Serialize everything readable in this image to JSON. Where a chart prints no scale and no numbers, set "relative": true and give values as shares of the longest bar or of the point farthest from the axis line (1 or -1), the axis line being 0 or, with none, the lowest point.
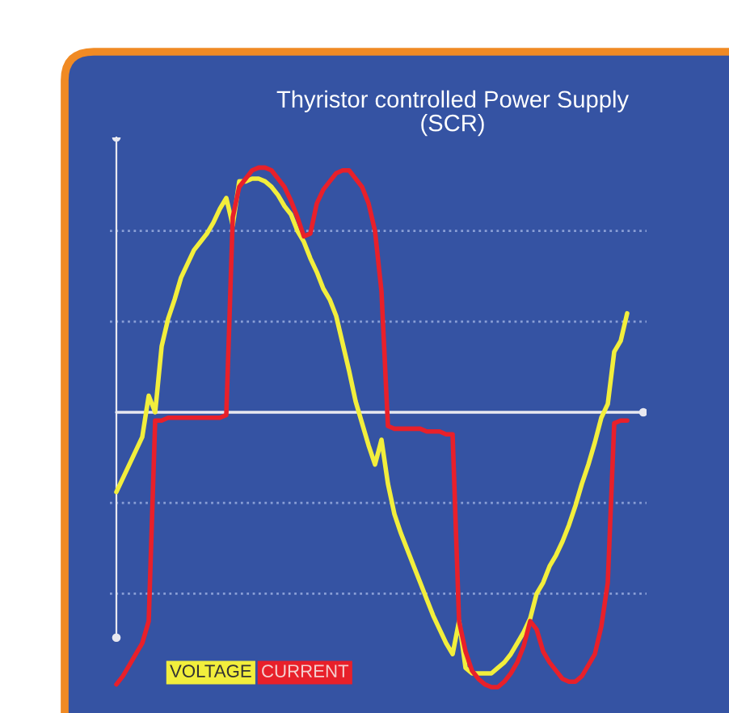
{
  "chart_data": {
    "type": "line",
    "title": "Thyristor controlled Power Supply\n(SCR)",
    "relative": true,
    "legend": "bottom left",
    "categories": [
      null,
      null,
      null,
      null,
      null,
      null,
      null,
      null,
      null,
      null,
      null,
      null,
      null,
      null,
      null,
      null,
      null,
      null,
      null,
      null,
      null,
      null,
      null,
      null,
      null,
      null,
      null,
      null,
      null,
      null,
      null,
      null,
      null,
      null,
      null,
      null,
      null,
      null,
      null,
      null,
      null,
      null,
      null,
      null,
      null,
      null,
      null,
      null,
      null,
      null,
      null,
      null,
      null,
      null,
      null,
      null,
      null,
      null,
      null,
      null,
      null,
      null,
      null,
      null,
      null,
      null,
      null,
      null,
      null,
      null,
      null,
      null,
      null,
      null,
      null,
      null,
      null,
      null,
      null,
      null
    ],
    "series": [
      {
        "name": "VOLTAGE",
        "color": "#f2ee3c",
        "values": [
          -0.29,
          -0.24,
          -0.19,
          -0.14,
          -0.09,
          0.06,
          0,
          0.24,
          0.34,
          0.41,
          0.49,
          0.54,
          0.59,
          0.62,
          0.65,
          0.69,
          0.74,
          0.78,
          0.68,
          0.84,
          0.84,
          0.85,
          0.85,
          0.84,
          0.82,
          0.79,
          0.75,
          0.72,
          0.66,
          0.62,
          0.56,
          0.51,
          0.45,
          0.41,
          0.35,
          0.25,
          0.15,
          0.04,
          -0.04,
          -0.12,
          -0.19,
          -0.1,
          -0.26,
          -0.37,
          -0.44,
          -0.5,
          -0.56,
          -0.62,
          -0.68,
          -0.74,
          -0.79,
          -0.84,
          -0.88,
          -0.76,
          -0.93,
          -0.95,
          -0.95,
          -0.95,
          -0.95,
          -0.93,
          -0.91,
          -0.88,
          -0.84,
          -0.8,
          -0.75,
          -0.66,
          -0.62,
          -0.56,
          -0.52,
          -0.47,
          -0.41,
          -0.34,
          -0.26,
          -0.19,
          -0.11,
          -0.02,
          0.03,
          0.22,
          0.26,
          0.36
        ]
      },
      {
        "name": "CURRENT",
        "color": "#e8202a",
        "values": [
          -0.99,
          -0.96,
          -0.92,
          -0.88,
          -0.84,
          -0.76,
          -0.03,
          -0.03,
          -0.02,
          -0.02,
          -0.02,
          -0.02,
          -0.02,
          -0.02,
          -0.02,
          -0.02,
          -0.02,
          -0.01,
          0.71,
          0.82,
          0.85,
          0.88,
          0.89,
          0.89,
          0.88,
          0.85,
          0.82,
          0.77,
          0.71,
          0.64,
          0.65,
          0.76,
          0.81,
          0.84,
          0.87,
          0.88,
          0.88,
          0.85,
          0.82,
          0.76,
          0.66,
          0.44,
          -0.05,
          -0.06,
          -0.06,
          -0.06,
          -0.06,
          -0.06,
          -0.07,
          -0.07,
          -0.07,
          -0.08,
          -0.08,
          -0.76,
          -0.87,
          -0.94,
          -0.97,
          -0.99,
          -1,
          -1,
          -0.98,
          -0.95,
          -0.91,
          -0.85,
          -0.76,
          -0.79,
          -0.87,
          -0.91,
          -0.94,
          -0.97,
          -0.98,
          -0.98,
          -0.96,
          -0.92,
          -0.88,
          -0.78,
          -0.62,
          -0.04,
          -0.03,
          -0.03
        ]
      }
    ],
    "ref_lines": [
      {
        "axis": "y",
        "value": 0.66,
        "color": "#8a9fd6",
        "line_style": "dotted"
      },
      {
        "axis": "y",
        "value": 0.33,
        "color": "#8a9fd6",
        "line_style": "dotted"
      },
      {
        "axis": "y",
        "value": -0.33,
        "color": "#8a9fd6",
        "line_style": "dotted"
      },
      {
        "axis": "y",
        "value": -0.66,
        "color": "#8a9fd6",
        "line_style": "dotted"
      }
    ]
  }
}
